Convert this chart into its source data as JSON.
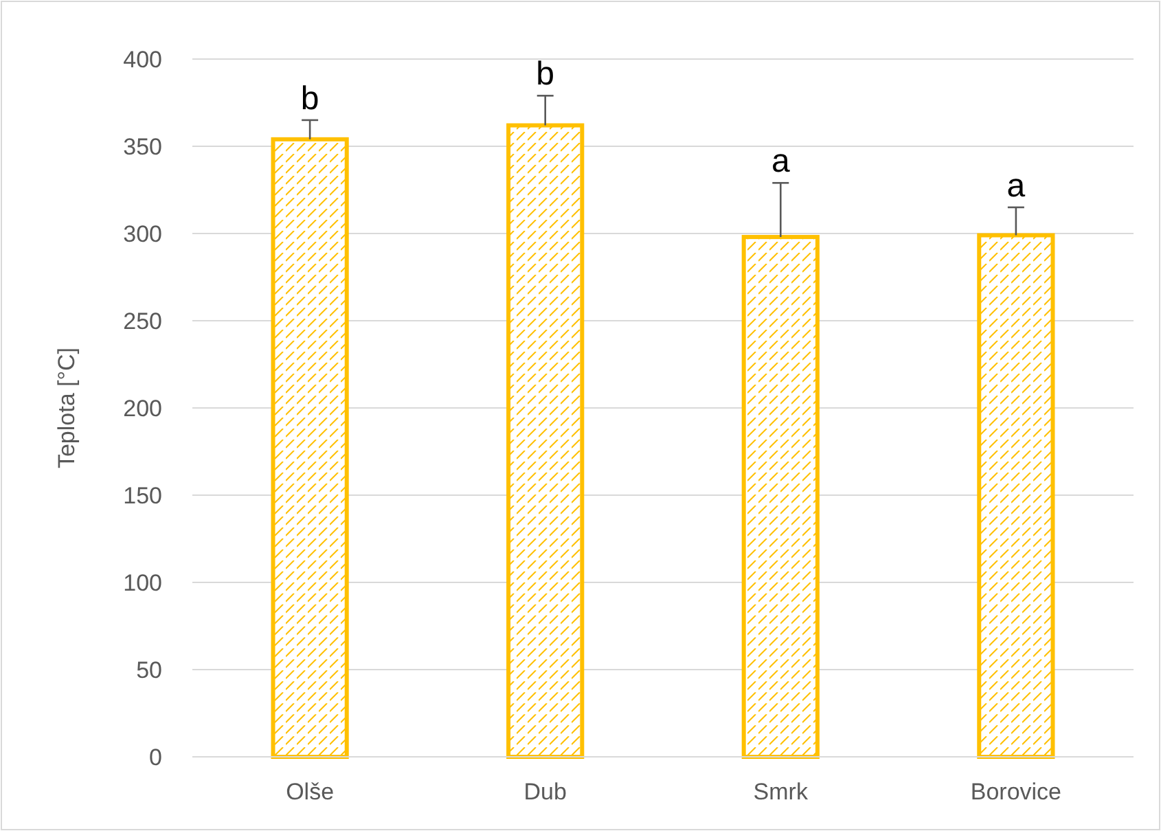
{
  "chart_data": {
    "type": "bar",
    "ylabel": "Teplota [°C]",
    "categories": [
      "Olše",
      "Dub",
      "Smrk",
      "Borovice"
    ],
    "values": [
      354,
      362,
      298,
      299
    ],
    "errors": [
      [
        354,
        365
      ],
      [
        362,
        379
      ],
      [
        298,
        329
      ],
      [
        299,
        315
      ]
    ],
    "color": "#ffc000",
    "ylim": [
      0,
      400
    ],
    "yticks": [
      0,
      50,
      100,
      150,
      200,
      250,
      300,
      350,
      400
    ],
    "grid": "y",
    "annotations": [
      {
        "text": "b",
        "x": "Olše",
        "y": 365
      },
      {
        "text": "b",
        "x": "Dub",
        "y": 379
      },
      {
        "text": "a",
        "x": "Smrk",
        "y": 329
      },
      {
        "text": "a",
        "x": "Borovice",
        "y": 315
      }
    ]
  }
}
